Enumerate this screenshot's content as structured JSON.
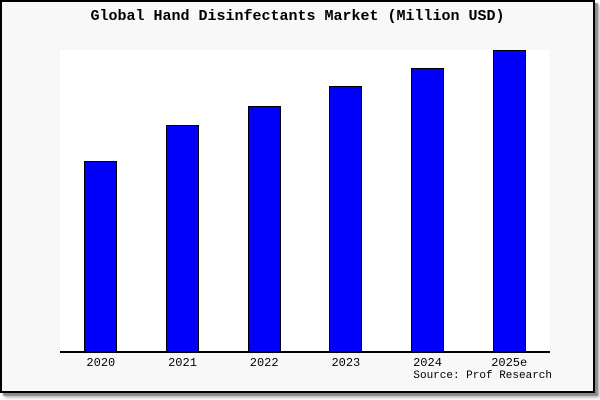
{
  "title": "Global Hand Disinfectants Market (Million USD)",
  "source": "Source: Prof Research",
  "colors": {
    "bar_fill": "#0000fa",
    "bar_border": "#000000",
    "frame_bg": "#f8f8f8",
    "plot_bg": "#ffffff",
    "axis": "#000000",
    "text": "#000000",
    "shadow": "#8a8a8a"
  },
  "chart_data": {
    "type": "bar",
    "title": "Global Hand Disinfectants Market (Million USD)",
    "categories": [
      "2020",
      "2021",
      "2022",
      "2023",
      "2024",
      "2025e"
    ],
    "values": [
      63,
      75,
      81.5,
      88,
      94,
      100
    ],
    "xlabel": "",
    "ylabel": "",
    "ylim": [
      0,
      100
    ],
    "y_axis_labels_visible": false,
    "grid": false,
    "legend": false,
    "units_note": "No y-axis ticks shown; values are relative bar heights with 2025e = 100",
    "source_annotation": "Source: Prof Research"
  }
}
